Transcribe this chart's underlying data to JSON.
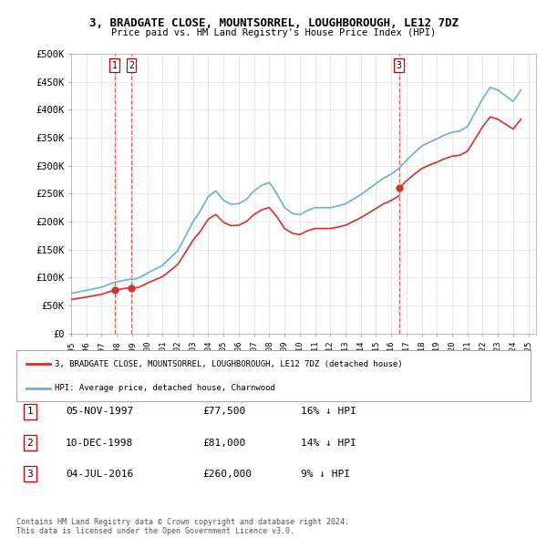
{
  "title": "3, BRADGATE CLOSE, MOUNTSORREL, LOUGHBOROUGH, LE12 7DZ",
  "subtitle": "Price paid vs. HM Land Registry's House Price Index (HPI)",
  "ylim": [
    0,
    500000
  ],
  "yticks": [
    0,
    50000,
    100000,
    150000,
    200000,
    250000,
    300000,
    350000,
    400000,
    450000,
    500000
  ],
  "ytick_labels": [
    "£0",
    "£50K",
    "£100K",
    "£150K",
    "£200K",
    "£250K",
    "£300K",
    "£350K",
    "£400K",
    "£450K",
    "£500K"
  ],
  "xlim_start": 1995.0,
  "xlim_end": 2025.5,
  "xticks": [
    1995,
    1996,
    1997,
    1998,
    1999,
    2000,
    2001,
    2002,
    2003,
    2004,
    2005,
    2006,
    2007,
    2008,
    2009,
    2010,
    2011,
    2012,
    2013,
    2014,
    2015,
    2016,
    2017,
    2018,
    2019,
    2020,
    2021,
    2022,
    2023,
    2024,
    2025
  ],
  "sale_dates": [
    1997.85,
    1998.94,
    2016.51
  ],
  "sale_prices": [
    77500,
    81000,
    260000
  ],
  "sale_labels": [
    "1",
    "2",
    "3"
  ],
  "hpi_color": "#6baed6",
  "price_color": "#d73027",
  "dashed_color": "#d73027",
  "legend_label_price": "3, BRADGATE CLOSE, MOUNTSORREL, LOUGHBOROUGH, LE12 7DZ (detached house)",
  "legend_label_hpi": "HPI: Average price, detached house, Charnwood",
  "table_rows": [
    [
      "1",
      "05-NOV-1997",
      "£77,500",
      "16% ↓ HPI"
    ],
    [
      "2",
      "10-DEC-1998",
      "£81,000",
      "14% ↓ HPI"
    ],
    [
      "3",
      "04-JUL-2016",
      "£260,000",
      "9% ↓ HPI"
    ]
  ],
  "footnote": "Contains HM Land Registry data © Crown copyright and database right 2024.\nThis data is licensed under the Open Government Licence v3.0.",
  "bg_color": "#ffffff",
  "grid_color": "#dddddd",
  "chart_bg": "#ffffff"
}
